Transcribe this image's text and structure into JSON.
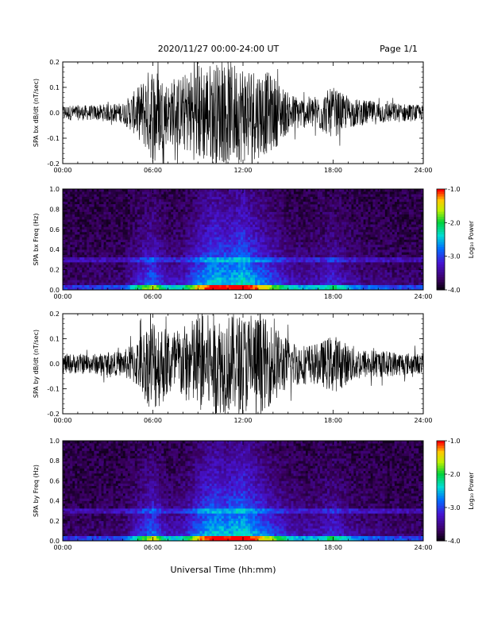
{
  "header": {
    "title": "2020/11/27  00:00-24:00 UT",
    "page": "Page 1/1"
  },
  "xlabel": "Universal Time (hh:mm)",
  "chart_data": [
    {
      "type": "line",
      "ylabel": "SPA bx dB/dt (nT/sec)",
      "xlim": [
        0,
        24
      ],
      "ylim": [
        -0.2,
        0.2
      ],
      "x_ticks": [
        "00:00",
        "06:00",
        "12:00",
        "18:00",
        "24:00"
      ],
      "y_ticks": [
        "-0.2",
        "-0.1",
        "0.0",
        "0.1",
        "0.2"
      ],
      "y_tick_values": [
        -0.2,
        -0.1,
        0.0,
        0.1,
        0.2
      ],
      "amplitude_envelope": {
        "hours": [
          0,
          2,
          4,
          5,
          6,
          7,
          8,
          9,
          10,
          11,
          12,
          13,
          14,
          15,
          16,
          17,
          18,
          19,
          20,
          22,
          24
        ],
        "amplitude": [
          0.03,
          0.03,
          0.04,
          0.1,
          0.2,
          0.12,
          0.15,
          0.2,
          0.2,
          0.2,
          0.2,
          0.18,
          0.15,
          0.08,
          0.06,
          0.07,
          0.1,
          0.06,
          0.05,
          0.04,
          0.03
        ]
      }
    },
    {
      "type": "heatmap",
      "ylabel": "SPA bx Freq (Hz)",
      "xlim": [
        0,
        24
      ],
      "ylim": [
        0,
        1.0
      ],
      "x_ticks": [
        "00:00",
        "06:00",
        "12:00",
        "18:00",
        "24:00"
      ],
      "y_ticks": [
        "0.0",
        "0.2",
        "0.4",
        "0.6",
        "0.8",
        "1.0"
      ],
      "y_tick_values": [
        0,
        0.2,
        0.4,
        0.6,
        0.8,
        1.0
      ],
      "colorbar": {
        "label": "Log₁₀ Power",
        "range": [
          -4.0,
          -1.0
        ],
        "ticks": [
          "-1.0",
          "-2.0",
          "-3.0",
          "-4.0"
        ],
        "tick_values": [
          -1,
          -2,
          -3,
          -4
        ]
      }
    },
    {
      "type": "line",
      "ylabel": "SPA by dB/dt (nT/sec)",
      "xlim": [
        0,
        24
      ],
      "ylim": [
        -0.2,
        0.2
      ],
      "x_ticks": [
        "00:00",
        "06:00",
        "12:00",
        "18:00",
        "24:00"
      ],
      "y_ticks": [
        "-0.2",
        "-0.1",
        "0.0",
        "0.1",
        "0.2"
      ],
      "y_tick_values": [
        -0.2,
        -0.1,
        0.0,
        0.1,
        0.2
      ],
      "amplitude_envelope": {
        "hours": [
          0,
          2,
          4,
          5,
          6,
          7,
          8,
          9,
          10,
          11,
          12,
          13,
          14,
          15,
          16,
          17,
          18,
          19,
          20,
          22,
          24
        ],
        "amplitude": [
          0.04,
          0.04,
          0.05,
          0.1,
          0.2,
          0.14,
          0.15,
          0.2,
          0.2,
          0.2,
          0.2,
          0.2,
          0.16,
          0.1,
          0.08,
          0.08,
          0.12,
          0.08,
          0.06,
          0.05,
          0.04
        ]
      }
    },
    {
      "type": "heatmap",
      "ylabel": "SPA by Freq (Hz)",
      "xlim": [
        0,
        24
      ],
      "ylim": [
        0,
        1.0
      ],
      "x_ticks": [
        "00:00",
        "06:00",
        "12:00",
        "18:00",
        "24:00"
      ],
      "y_ticks": [
        "0.0",
        "0.2",
        "0.4",
        "0.6",
        "0.8",
        "1.0"
      ],
      "y_tick_values": [
        0,
        0.2,
        0.4,
        0.6,
        0.8,
        1.0
      ],
      "colorbar": {
        "label": "Log₁₀ Power",
        "range": [
          -4.0,
          -1.0
        ],
        "ticks": [
          "-1.0",
          "-2.0",
          "-3.0",
          "-4.0"
        ],
        "tick_values": [
          -1,
          -2,
          -3,
          -4
        ]
      }
    }
  ]
}
